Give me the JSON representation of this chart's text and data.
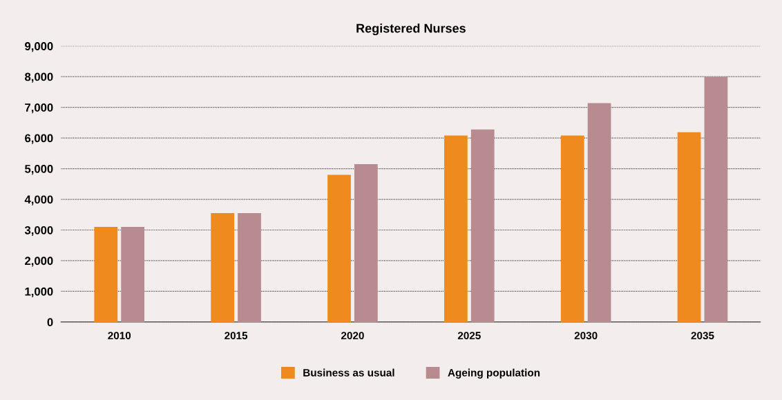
{
  "chart_data": {
    "type": "bar",
    "title": "Registered Nurses",
    "categories": [
      "2010",
      "2015",
      "2020",
      "2025",
      "2030",
      "2035"
    ],
    "series": [
      {
        "name": "Business as usual",
        "color": "#ef8b1e",
        "values": [
          3100,
          3550,
          4800,
          6080,
          6080,
          6190
        ]
      },
      {
        "name": "Ageing population",
        "color": "#b88b91",
        "values": [
          3100,
          3550,
          5150,
          6280,
          7140,
          8000
        ]
      }
    ],
    "ylim": [
      0,
      9000
    ],
    "yticks": [
      {
        "value": 0,
        "label": "0"
      },
      {
        "value": 1000,
        "label": "1,000"
      },
      {
        "value": 2000,
        "label": "2,000"
      },
      {
        "value": 3000,
        "label": "3,000"
      },
      {
        "value": 4000,
        "label": "4,000"
      },
      {
        "value": 5000,
        "label": "5,000"
      },
      {
        "value": 6000,
        "label": "6,000"
      },
      {
        "value": 7000,
        "label": "7,000"
      },
      {
        "value": 8000,
        "label": "8,000"
      },
      {
        "value": 9000,
        "label": "9,000"
      }
    ],
    "grid": "y",
    "legend": "bottom"
  }
}
